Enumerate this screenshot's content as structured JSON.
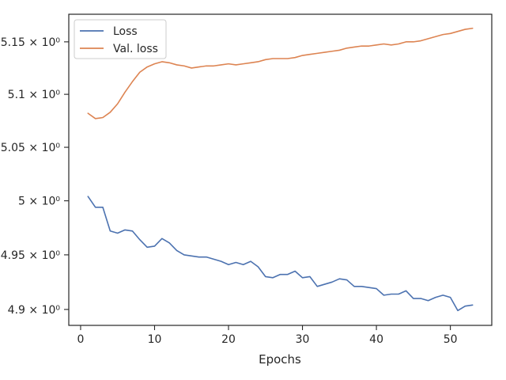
{
  "chart_data": {
    "type": "line",
    "title": "",
    "xlabel": "Epochs",
    "ylabel": "",
    "xlim": [
      -1.6,
      55.6
    ],
    "ylim": [
      4.8855,
      5.1765
    ],
    "x_ticks": [
      0,
      10,
      20,
      30,
      40,
      50
    ],
    "x_tick_labels": [
      "0",
      "10",
      "20",
      "30",
      "40",
      "50"
    ],
    "y_ticks": [
      4.9,
      4.95,
      5.0,
      5.05,
      5.1,
      5.15
    ],
    "y_tick_labels": [
      "4.9 × 10⁰",
      "4.95 × 10⁰",
      "5 × 10⁰",
      "5.05 × 10⁰",
      "5.1 × 10⁰",
      "5.15 × 10⁰"
    ],
    "y_scale": "log",
    "grid": false,
    "legend_position": "upper-left",
    "x": [
      1,
      2,
      3,
      4,
      5,
      6,
      7,
      8,
      9,
      10,
      11,
      12,
      13,
      14,
      15,
      16,
      17,
      18,
      19,
      20,
      21,
      22,
      23,
      24,
      25,
      26,
      27,
      28,
      29,
      30,
      31,
      32,
      33,
      34,
      35,
      36,
      37,
      38,
      39,
      40,
      41,
      42,
      43,
      44,
      45,
      46,
      47,
      48,
      49,
      50,
      51,
      52,
      53
    ],
    "series": [
      {
        "name": "Loss",
        "color": "#4c72b0",
        "values": [
          5.004,
          4.994,
          4.994,
          4.972,
          4.97,
          4.973,
          4.972,
          4.964,
          4.957,
          4.958,
          4.965,
          4.961,
          4.954,
          4.95,
          4.949,
          4.948,
          4.948,
          4.946,
          4.944,
          4.941,
          4.943,
          4.941,
          4.944,
          4.939,
          4.93,
          4.929,
          4.932,
          4.932,
          4.935,
          4.929,
          4.93,
          4.921,
          4.923,
          4.925,
          4.928,
          4.927,
          4.921,
          4.921,
          4.92,
          4.919,
          4.913,
          4.914,
          4.914,
          4.917,
          4.91,
          4.91,
          4.908,
          4.911,
          4.913,
          4.911,
          4.899,
          4.903,
          4.904
        ]
      },
      {
        "name": "Val. loss",
        "color": "#dd8452",
        "values": [
          5.082,
          5.077,
          5.078,
          5.083,
          5.091,
          5.102,
          5.112,
          5.121,
          5.126,
          5.129,
          5.131,
          5.13,
          5.128,
          5.127,
          5.125,
          5.126,
          5.127,
          5.127,
          5.128,
          5.129,
          5.128,
          5.129,
          5.13,
          5.131,
          5.133,
          5.134,
          5.134,
          5.134,
          5.135,
          5.137,
          5.138,
          5.139,
          5.14,
          5.141,
          5.142,
          5.144,
          5.145,
          5.146,
          5.146,
          5.147,
          5.148,
          5.147,
          5.148,
          5.15,
          5.15,
          5.151,
          5.153,
          5.155,
          5.157,
          5.158,
          5.16,
          5.162,
          5.163
        ]
      }
    ]
  }
}
